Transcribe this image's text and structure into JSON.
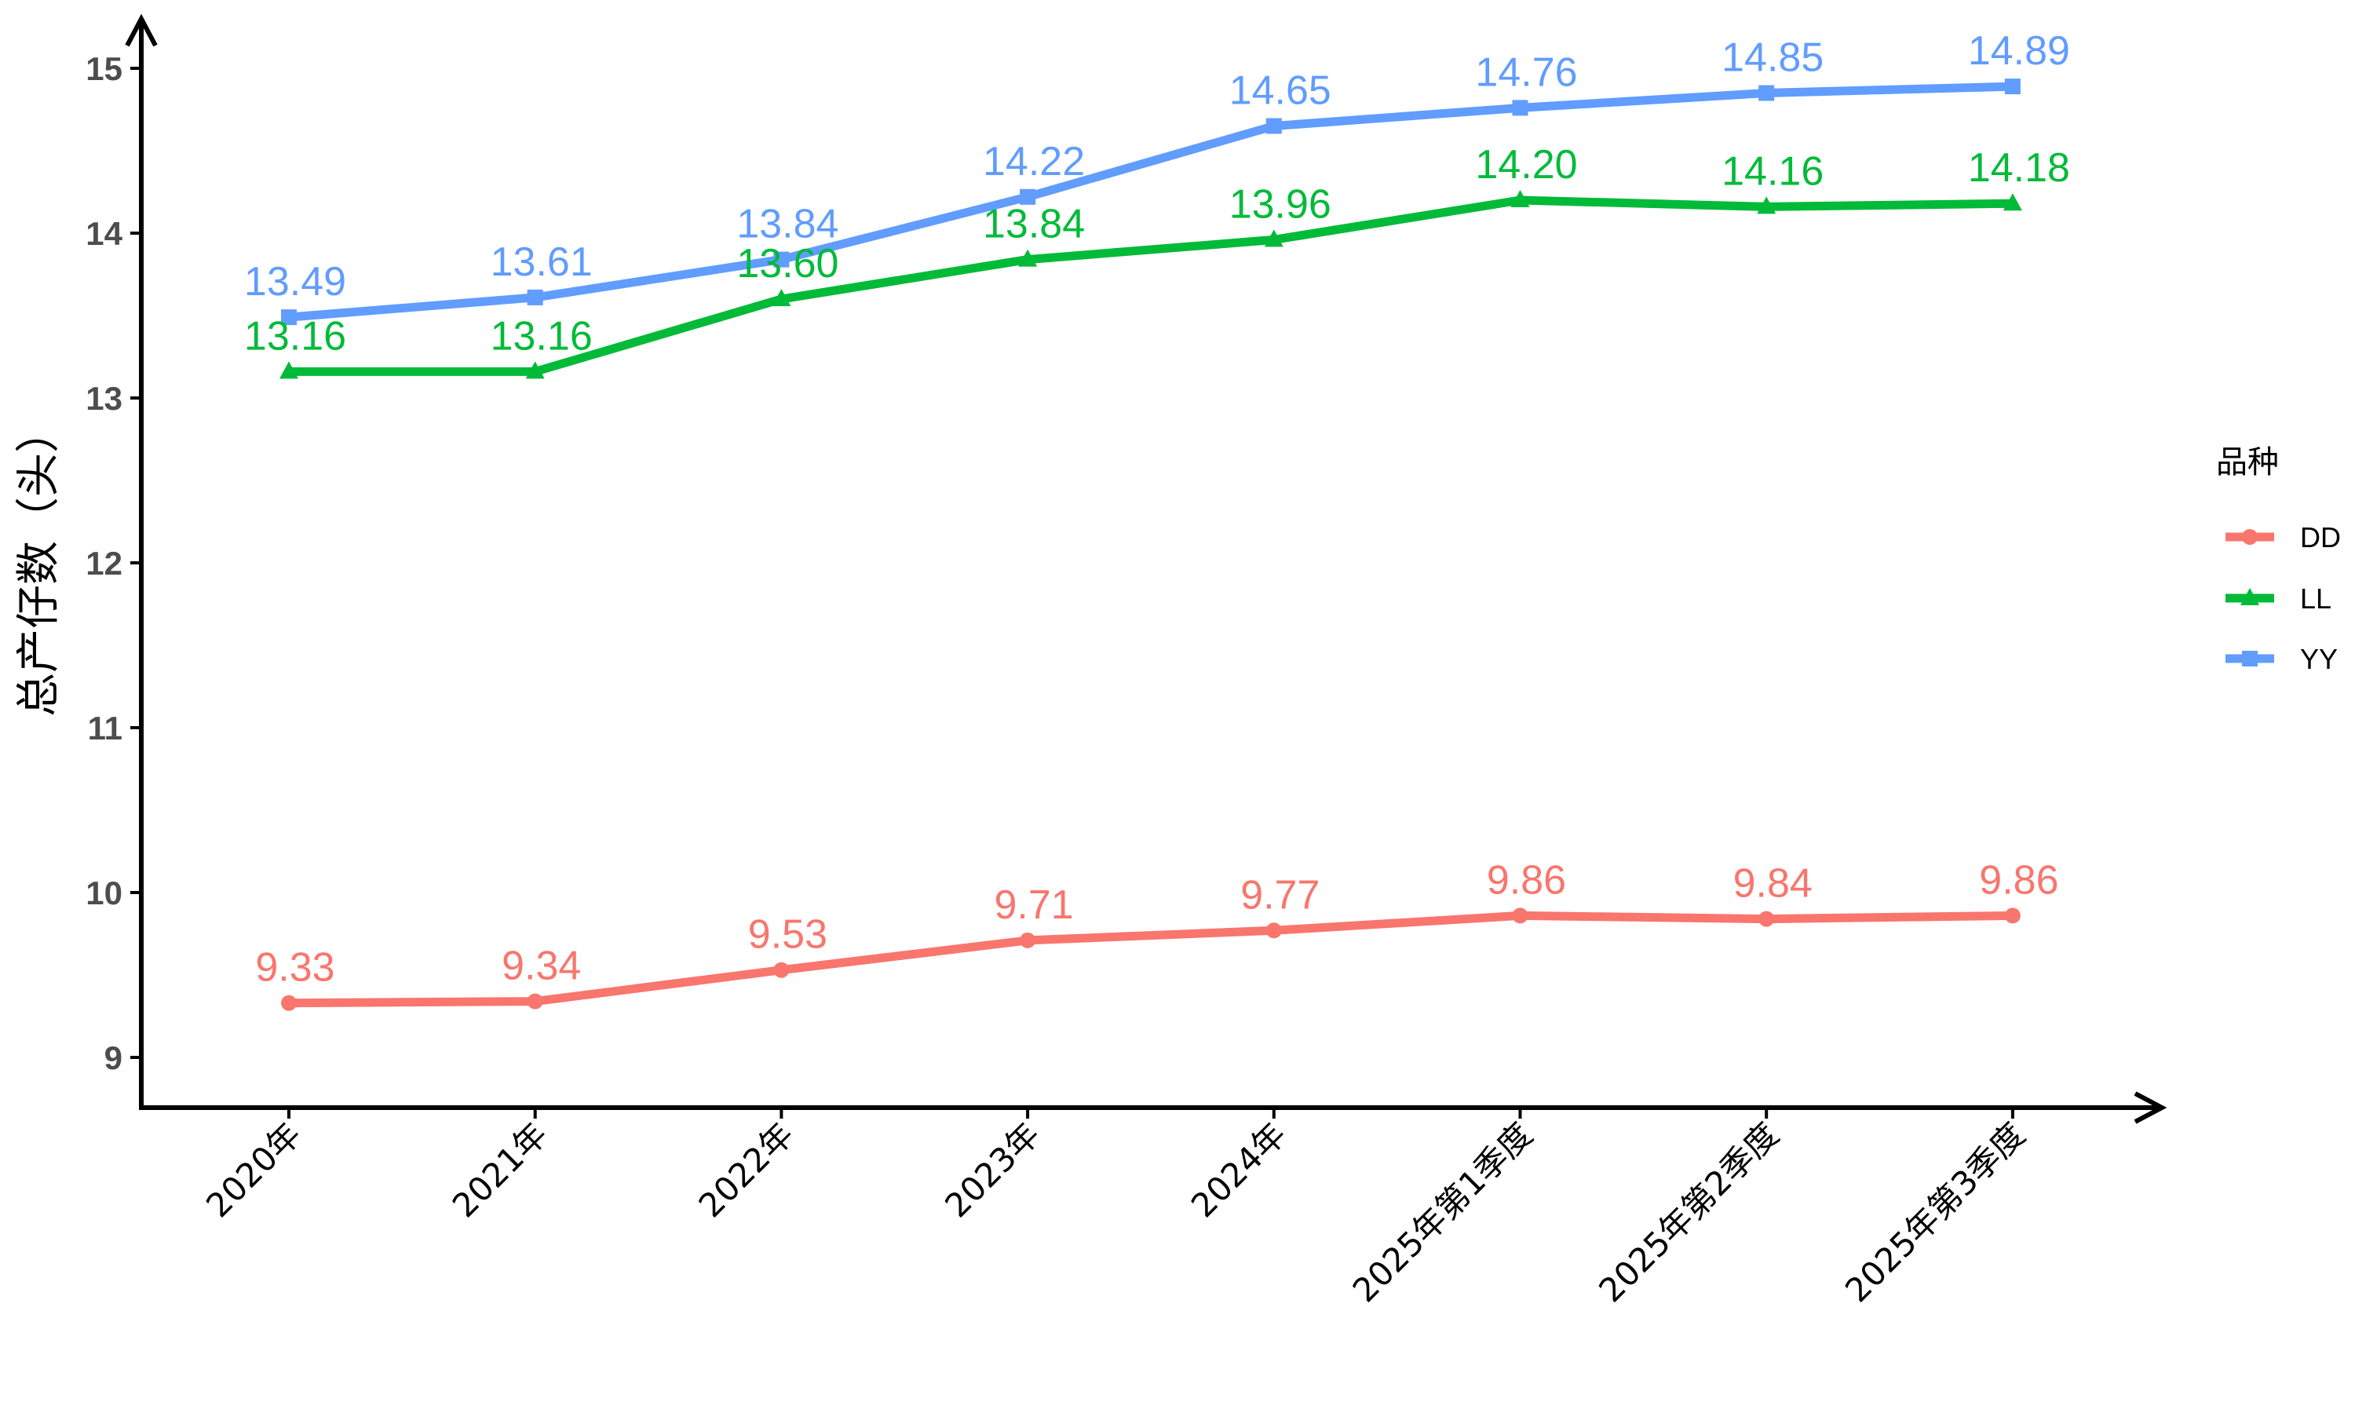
{
  "chart_data": {
    "type": "line",
    "title": "",
    "xlabel": "",
    "ylabel": "总产仔数（头）",
    "categories": [
      "2020年",
      "2021年",
      "2022年",
      "2023年",
      "2024年",
      "2025年第1季度",
      "2025年第2季度",
      "2025年第3季度"
    ],
    "ylim": [
      8.7,
      15.3
    ],
    "yticks": [
      9,
      10,
      11,
      12,
      13,
      14,
      15
    ],
    "grid": false,
    "legend": {
      "title": "品种",
      "position": "right"
    },
    "series": [
      {
        "name": "DD",
        "color": "#F8766D",
        "marker": "circle",
        "values": [
          9.33,
          9.34,
          9.53,
          9.71,
          9.77,
          9.86,
          9.84,
          9.86
        ]
      },
      {
        "name": "LL",
        "color": "#00BA38",
        "marker": "triangle",
        "values": [
          13.16,
          13.16,
          13.6,
          13.84,
          13.96,
          14.2,
          14.16,
          14.18
        ]
      },
      {
        "name": "YY",
        "color": "#619CFF",
        "marker": "square",
        "values": [
          13.49,
          13.61,
          13.84,
          14.22,
          14.65,
          14.76,
          14.85,
          14.89
        ]
      }
    ]
  }
}
